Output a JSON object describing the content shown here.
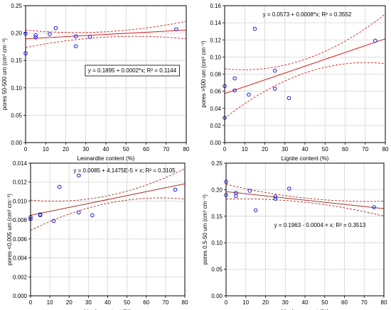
{
  "chart_data": [
    {
      "type": "scatter",
      "xlabel": "Leonardite content (%)",
      "ylabel": "pores 50-500 um (cm³ cm⁻³)",
      "xlim": [
        0,
        80
      ],
      "ylim": [
        0,
        0.25
      ],
      "xticks": [
        "0",
        "10",
        "20",
        "30",
        "40",
        "50",
        "60",
        "70",
        "80"
      ],
      "yticks": [
        "0.00",
        "0.05",
        "0.10",
        "0.15",
        "0.20",
        "0.25"
      ],
      "grid": true,
      "equation": "y = 0.1895 + 0.0002*x; R² = 0.1144",
      "fit": {
        "intercept": 0.1895,
        "slope": 0.0002
      },
      "ci_half_width_at_ends": 0.016,
      "ci_half_width_min": 0.005,
      "equation_position": "middle-right, boxed",
      "points": [
        [
          0,
          0.199
        ],
        [
          0,
          0.163
        ],
        [
          5,
          0.196
        ],
        [
          5,
          0.192
        ],
        [
          12,
          0.198
        ],
        [
          15,
          0.209
        ],
        [
          25,
          0.194
        ],
        [
          25,
          0.176
        ],
        [
          32,
          0.193
        ],
        [
          75,
          0.207
        ]
      ],
      "marker_color": "#1a1ad6",
      "fit_color": "#e02020"
    },
    {
      "type": "scatter",
      "xlabel": "Lignite content (%)",
      "ylabel": "pores >500 um (cm³ cm⁻³)",
      "xlim": [
        0,
        80
      ],
      "ylim": [
        0,
        0.16
      ],
      "xticks": [
        "0",
        "10",
        "20",
        "30",
        "40",
        "50",
        "60",
        "70",
        "80"
      ],
      "yticks": [
        "0.00",
        "0.02",
        "0.04",
        "0.06",
        "0.08",
        "0.10",
        "0.12",
        "0.14",
        "0.16"
      ],
      "grid": true,
      "equation": "y = 0.0573 + 0.0008*x; R² = 0.3552",
      "fit": {
        "intercept": 0.0573,
        "slope": 0.0008
      },
      "ci_half_width_at_ends": 0.029,
      "ci_half_width_min": 0.008,
      "equation_position": "top",
      "points": [
        [
          0,
          0.066
        ],
        [
          0,
          0.029
        ],
        [
          5,
          0.075
        ],
        [
          5,
          0.061
        ],
        [
          12,
          0.056
        ],
        [
          15,
          0.133
        ],
        [
          25,
          0.084
        ],
        [
          25,
          0.063
        ],
        [
          32,
          0.052
        ],
        [
          75,
          0.119
        ]
      ],
      "marker_color": "#1a1ad6",
      "fit_color": "#e02020"
    },
    {
      "type": "scatter",
      "xlabel": "Lignite content (%)",
      "ylabel": "pores <0.005 um (cm³ cm⁻³)",
      "xlim": [
        0,
        80
      ],
      "ylim": [
        0,
        0.014
      ],
      "xticks": [
        "0",
        "10",
        "20",
        "30",
        "40",
        "50",
        "60",
        "70",
        "80"
      ],
      "yticks": [
        "0.000",
        "0.002",
        "0.004",
        "0.006",
        "0.008",
        "0.010",
        "0.012",
        "0.014"
      ],
      "grid": true,
      "equation": "y = 0.0085 + 4.1475E-5 × x; R² = 0.3105",
      "fit": {
        "intercept": 0.0085,
        "slope": 4.1475e-05
      },
      "ci_half_width_at_ends": 0.0016,
      "ci_half_width_min": 0.0004,
      "equation_position": "top",
      "points": [
        [
          0,
          0.0081
        ],
        [
          0,
          0.0083
        ],
        [
          5,
          0.0085
        ],
        [
          5,
          0.0086
        ],
        [
          12,
          0.0079
        ],
        [
          15,
          0.0115
        ],
        [
          25,
          0.0127
        ],
        [
          25,
          0.0088
        ],
        [
          32,
          0.0085
        ],
        [
          75,
          0.0112
        ]
      ],
      "marker_color": "#1a1ad6",
      "fit_color": "#a83228"
    },
    {
      "type": "scatter",
      "xlabel": "Lignite content (%)",
      "ylabel": "pores 0.5-50 um (cm³ cm⁻³)",
      "xlim": [
        0,
        80
      ],
      "ylim": [
        0,
        0.25
      ],
      "xticks": [
        "0",
        "10",
        "20",
        "30",
        "40",
        "50",
        "60",
        "70",
        "80"
      ],
      "yticks": [
        "0.00",
        "0.05",
        "0.10",
        "0.15",
        "0.20",
        "0.25"
      ],
      "grid": true,
      "equation": "y = 0.1963 - 0.0004 × x; R² = 0.3513",
      "fit": {
        "intercept": 0.1963,
        "slope": -0.0004
      },
      "ci_half_width_at_ends": 0.014,
      "ci_half_width_min": 0.004,
      "equation_position": "middle-right",
      "points": [
        [
          0,
          0.215
        ],
        [
          0,
          0.19
        ],
        [
          5,
          0.194
        ],
        [
          5,
          0.188
        ],
        [
          12,
          0.198
        ],
        [
          15,
          0.161
        ],
        [
          25,
          0.187
        ],
        [
          25,
          0.183
        ],
        [
          32,
          0.202
        ],
        [
          75,
          0.167
        ]
      ],
      "marker_color": "#1a1ad6",
      "fit_color": "#a83228"
    }
  ]
}
